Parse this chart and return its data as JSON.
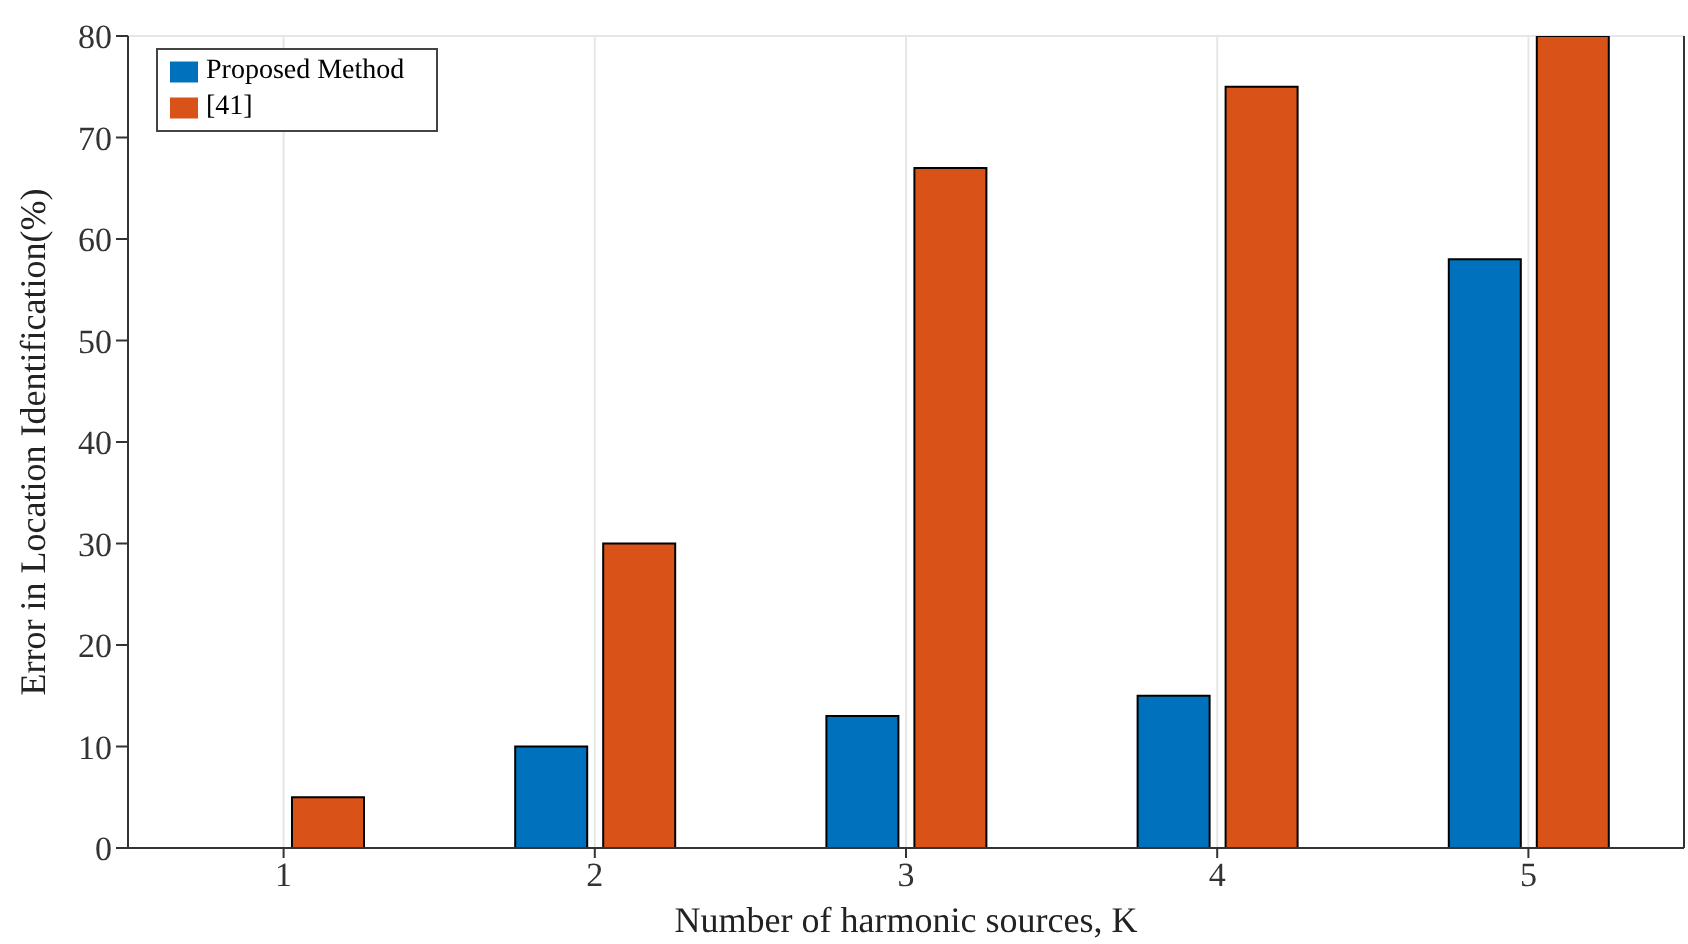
{
  "chart_data": {
    "type": "bar",
    "xlabel": "Number of harmonic sources, K",
    "ylabel": "Error in Location Identification(%)",
    "categories": [
      "1",
      "2",
      "3",
      "4",
      "5"
    ],
    "series": [
      {
        "name": "Proposed Method",
        "color": "#0072bd",
        "values": [
          0,
          10,
          13,
          15,
          58
        ]
      },
      {
        "name": "[41]",
        "color": "#d95319",
        "values": [
          5,
          30,
          67,
          75,
          80
        ]
      }
    ],
    "ylim": [
      0,
      80
    ],
    "yticks": [
      0,
      10,
      20,
      30,
      40,
      50,
      60,
      70,
      80
    ],
    "grid": true,
    "legend": "top left"
  }
}
